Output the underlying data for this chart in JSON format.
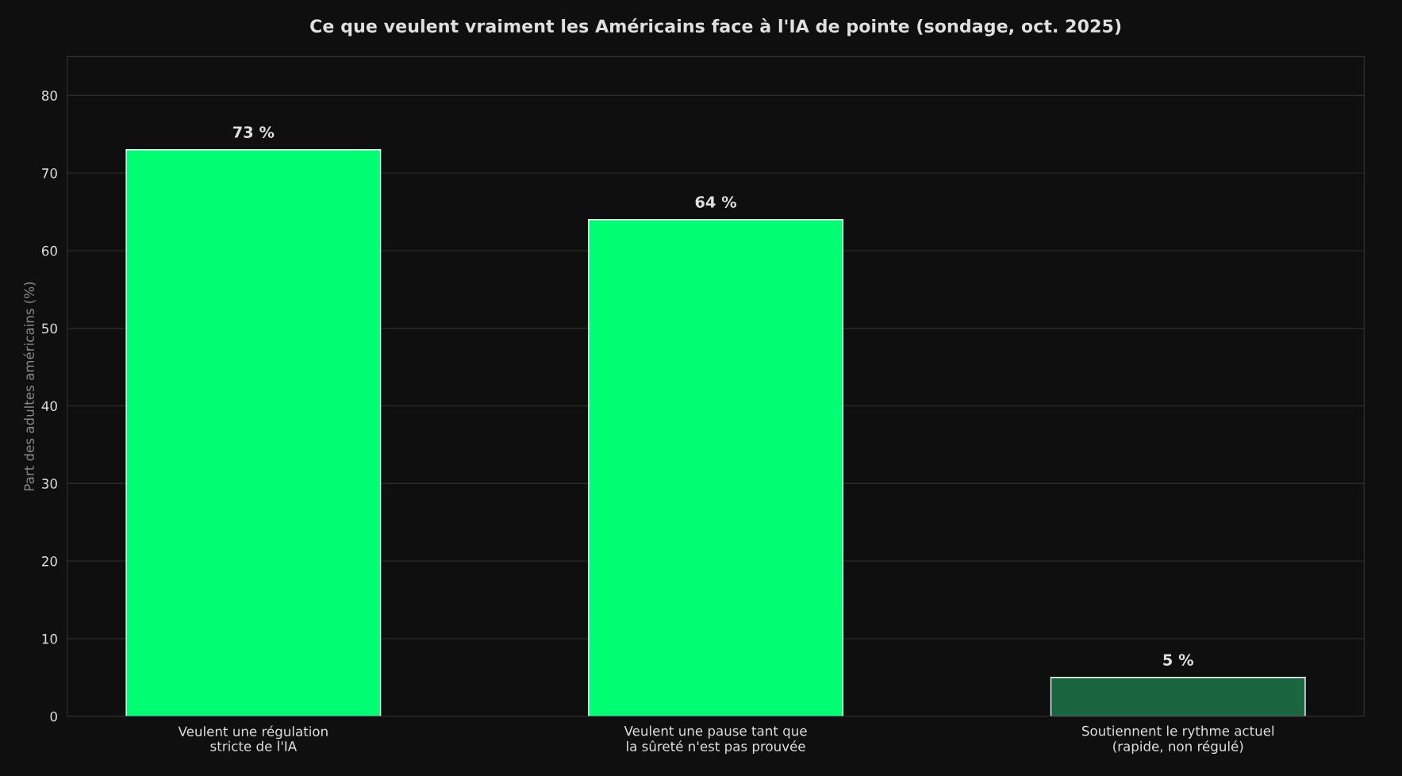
{
  "chart_data": {
    "type": "bar",
    "title": "Ce que veulent vraiment les Américains face à l'IA de pointe (sondage, oct. 2025)",
    "ylabel": "Part des adultes américains (%)",
    "categories": [
      "Veulent une régulation\nstricte de l'IA",
      "Veulent une pause tant que\nla sûreté n'est pas prouvée",
      "Soutiennent le rythme actuel\n(rapide, non régulé)"
    ],
    "values": [
      73,
      64,
      5
    ],
    "colors": [
      "#00ff73",
      "#00ff73",
      "#1a6640"
    ],
    "value_labels": [
      "73 %",
      "64 %",
      "5 %"
    ],
    "ylim": [
      0,
      85
    ],
    "yticks": [
      0,
      10,
      20,
      30,
      40,
      50,
      60,
      70,
      80
    ],
    "grid": "y",
    "legend": false
  }
}
